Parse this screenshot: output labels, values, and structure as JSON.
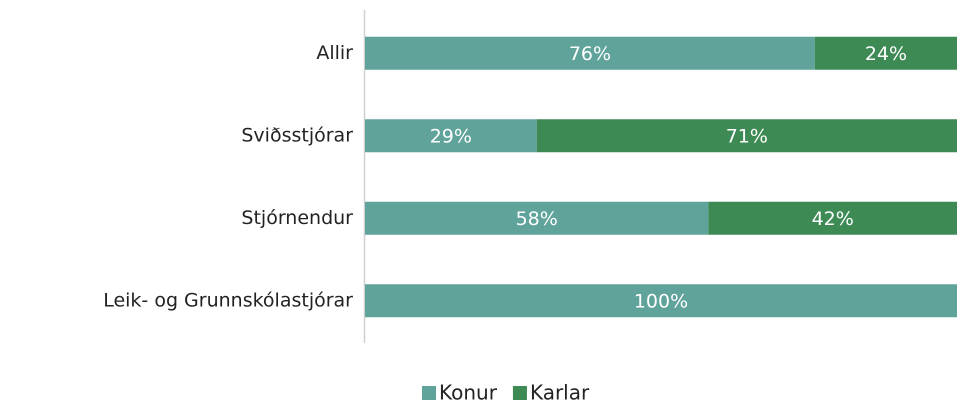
{
  "chart_data": {
    "type": "stacked_bar_horizontal",
    "categories": [
      "Allir",
      "Sviðsstjórar",
      "Stjórnendur",
      "Leik- og Grunnskólastjórar"
    ],
    "series": [
      {
        "name": "Konur",
        "color": "#5fa39b",
        "values": [
          76,
          29,
          58,
          100
        ],
        "value_labels": [
          "76%",
          "29%",
          "58%",
          "100%"
        ]
      },
      {
        "name": "Karlar",
        "color": "#3e8a55",
        "values": [
          24,
          71,
          42,
          0
        ],
        "value_labels": [
          "24%",
          "71%",
          "42%",
          null
        ]
      }
    ],
    "xlim": [
      0,
      100
    ],
    "legend": "bottom"
  }
}
